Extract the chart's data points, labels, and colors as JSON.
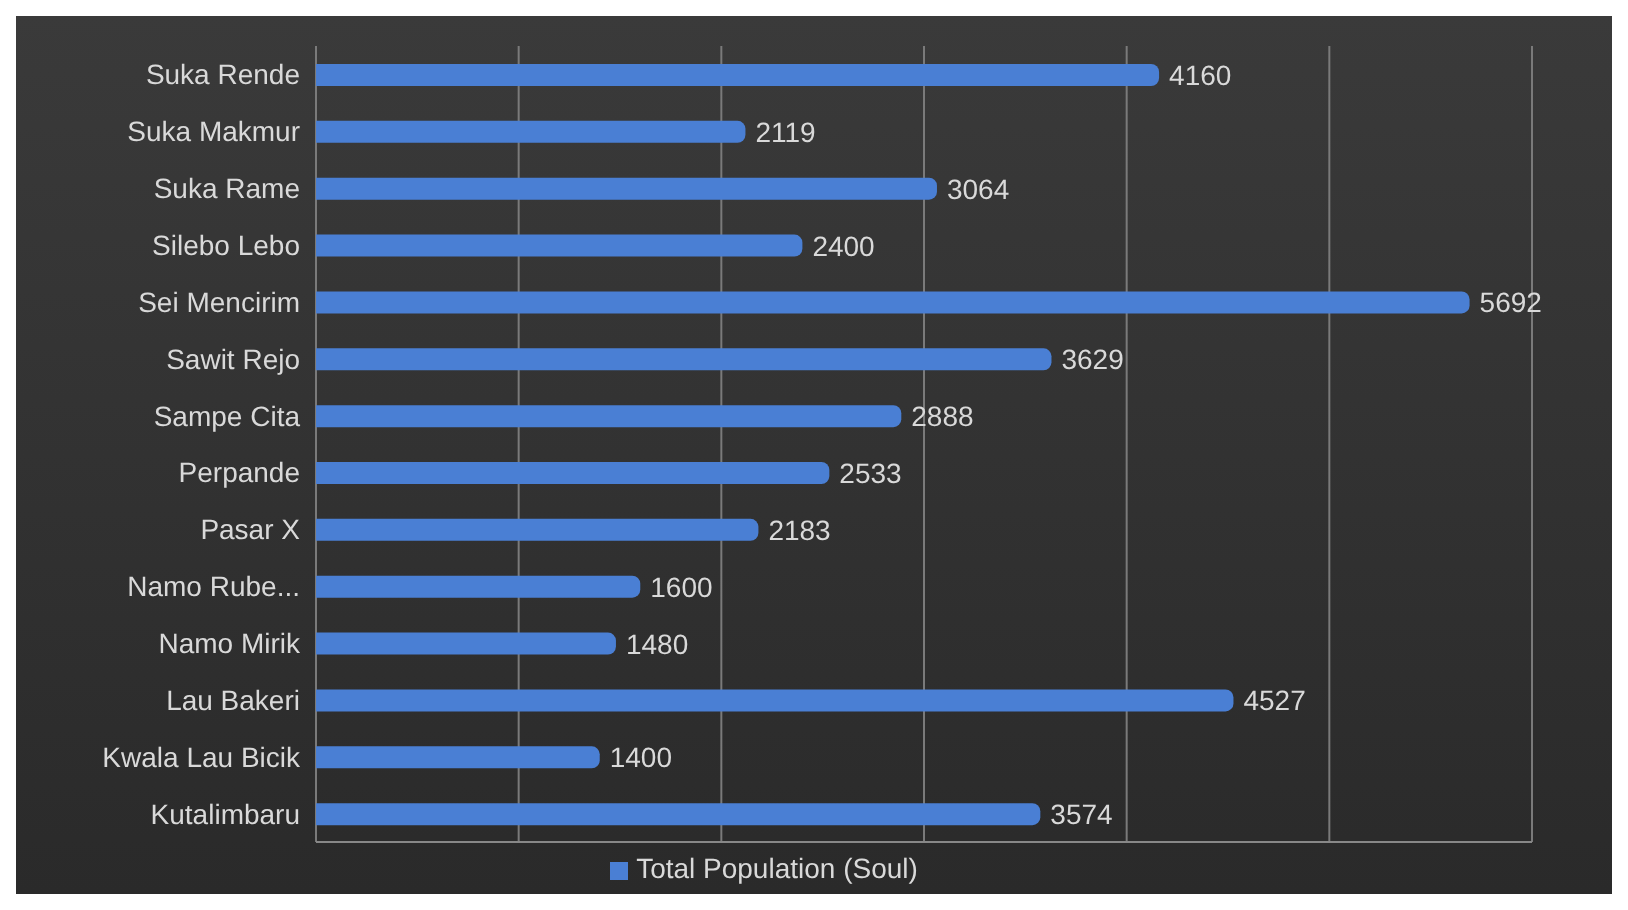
{
  "chart_data": {
    "type": "bar",
    "orientation": "horizontal",
    "categories": [
      "Suka Rende",
      "Suka Makmur",
      "Suka Rame",
      "Silebo Lebo",
      "Sei Mencirim",
      "Sawit Rejo",
      "Sampe Cita",
      "Perpande",
      "Pasar X",
      "Namo Rube...",
      "Namo Mirik",
      "Lau Bakeri",
      "Kwala Lau Bicik",
      "Kutalimbaru"
    ],
    "series": [
      {
        "name": "Total Population (Soul)",
        "color": "#4a7fd4",
        "values": [
          4160,
          2119,
          3064,
          2400,
          5692,
          3629,
          2888,
          2533,
          2183,
          1600,
          1480,
          4527,
          1400,
          3574
        ]
      }
    ],
    "xlim": [
      0,
      6000
    ],
    "xticks": [
      {
        "value": 0,
        "label": null
      },
      {
        "value": 1000,
        "label": null
      },
      {
        "value": 2000,
        "label": null
      },
      {
        "value": 3000,
        "label": null
      },
      {
        "value": 4000,
        "label": null
      },
      {
        "value": 5000,
        "label": null
      },
      {
        "value": 6000,
        "label": null
      }
    ],
    "tick_labels": "y",
    "grid": "x",
    "legend": "bottom",
    "data_labels": true
  }
}
